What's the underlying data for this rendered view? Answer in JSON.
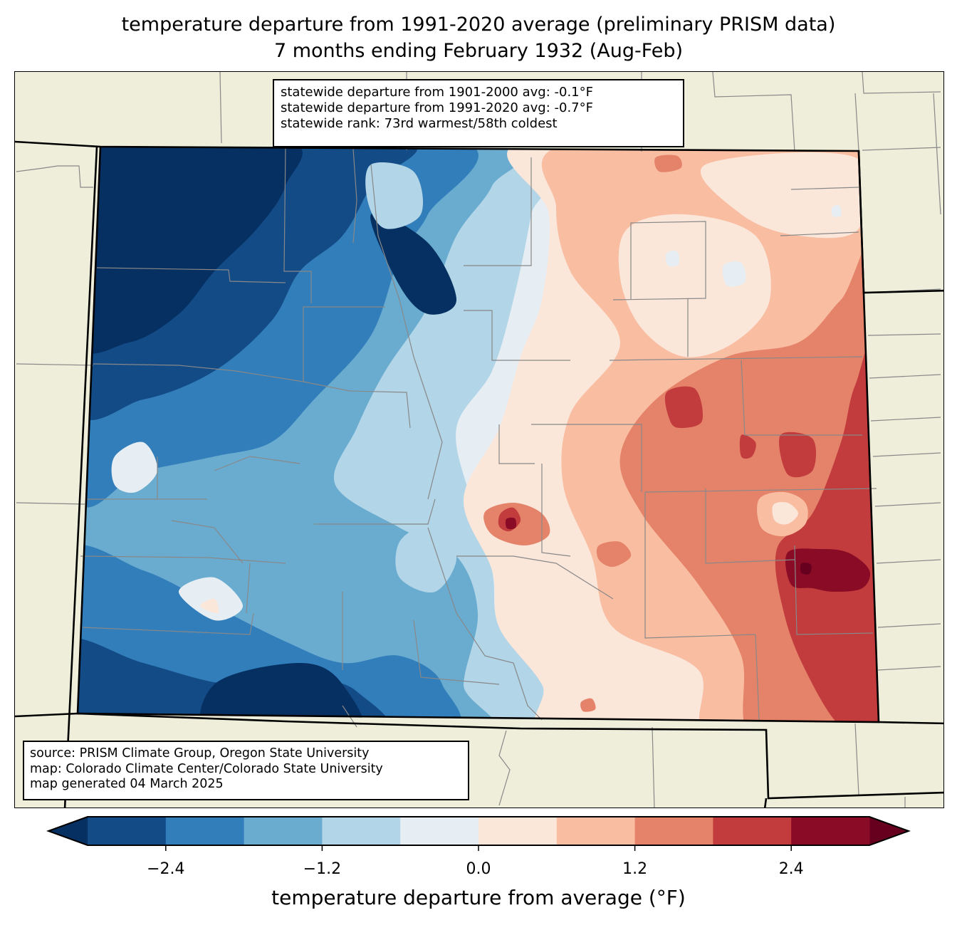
{
  "title": {
    "line1": "temperature departure from 1991-2020 average (preliminary PRISM data)",
    "line2": "7 months ending February 1932 (Aug-Feb)"
  },
  "stats_box": {
    "line1": "statewide departure from 1901-2000 avg: -0.1°F",
    "line2": "statewide departure from 1991-2020 avg: -0.7°F",
    "line3": "statewide rank: 73rd warmest/58th coldest"
  },
  "source_box": {
    "line1": "source: PRISM Climate Group, Oregon State University",
    "line2": "map: Colorado Climate Center/Colorado State University",
    "line3": "map generated 04 March 2025"
  },
  "colorbar": {
    "label": "temperature departure from average (°F)",
    "levels": [
      -3.0,
      -2.4,
      -1.8,
      -1.2,
      -0.6,
      0.0,
      0.6,
      1.2,
      1.8,
      2.4,
      3.0
    ],
    "ticks": [
      {
        "value": -2.4,
        "label": "−2.4"
      },
      {
        "value": -1.2,
        "label": "−1.2"
      },
      {
        "value": 0.0,
        "label": "0.0"
      },
      {
        "value": 1.2,
        "label": "1.2"
      },
      {
        "value": 2.4,
        "label": "2.4"
      }
    ],
    "under_color": "#053061",
    "over_color": "#67001f",
    "colors": [
      "#134b87",
      "#327ebb",
      "#6aacd0",
      "#b2d5e7",
      "#e6eef3",
      "#fbe6da",
      "#f9bda1",
      "#e5836a",
      "#c23b3d",
      "#8a0b25"
    ],
    "extend": "both"
  },
  "map": {
    "background_color": "#efeedb",
    "county_line_color": "#888888",
    "state_line_color": "#000000"
  }
}
